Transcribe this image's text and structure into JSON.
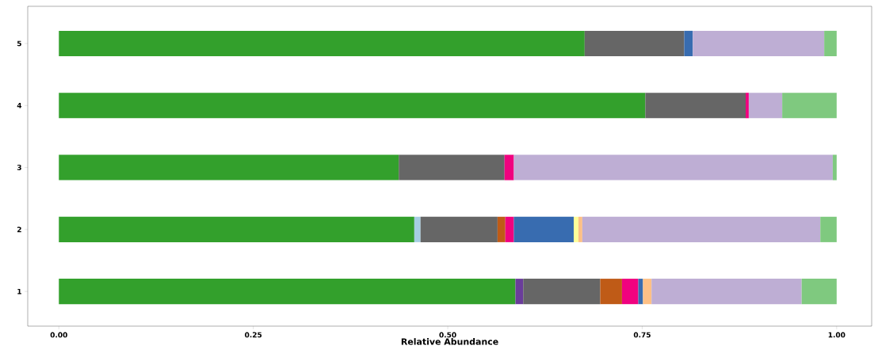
{
  "chart_data": {
    "type": "bar",
    "orientation": "horizontal",
    "stacked": true,
    "xlabel": "Relative Abundance",
    "categories": [
      "5",
      "4",
      "3",
      "2",
      "1"
    ],
    "xlim": [
      -0.04,
      1.045
    ],
    "xticks": [
      {
        "value": 0,
        "label": "0.00"
      },
      {
        "value": 0.25,
        "label": "0.25"
      },
      {
        "value": 0.5,
        "label": "0.50"
      },
      {
        "value": 0.75,
        "label": "0.75"
      },
      {
        "value": 1,
        "label": "1.00"
      }
    ],
    "series": [
      {
        "color": "#33a02c",
        "values": [
          0.676,
          0.754,
          0.437,
          0.457,
          0.587
        ]
      },
      {
        "color": "#a6cee3",
        "values": [
          null,
          null,
          null,
          0.008,
          null
        ]
      },
      {
        "color": "#6a3d9a",
        "values": [
          null,
          null,
          null,
          null,
          0.01
        ]
      },
      {
        "color": "#666666",
        "values": [
          0.128,
          0.129,
          0.136,
          0.099,
          0.099
        ]
      },
      {
        "color": "#bf5b17",
        "values": [
          null,
          null,
          null,
          0.01,
          0.028
        ]
      },
      {
        "color": "#f0027f",
        "values": [
          null,
          0.004,
          0.012,
          0.011,
          0.021
        ]
      },
      {
        "color": "#386cb0",
        "values": [
          0.011,
          null,
          null,
          0.077,
          0.006
        ]
      },
      {
        "color": "#ffff99",
        "values": [
          null,
          null,
          null,
          0.006,
          null
        ]
      },
      {
        "color": "#fdc086",
        "values": [
          null,
          null,
          null,
          0.005,
          0.011
        ]
      },
      {
        "color": "#beaed4",
        "values": [
          0.169,
          0.043,
          0.41,
          0.306,
          0.193
        ]
      },
      {
        "color": "#7fc97f",
        "values": [
          0.016,
          0.07,
          0.005,
          0.021,
          0.045
        ]
      }
    ]
  }
}
